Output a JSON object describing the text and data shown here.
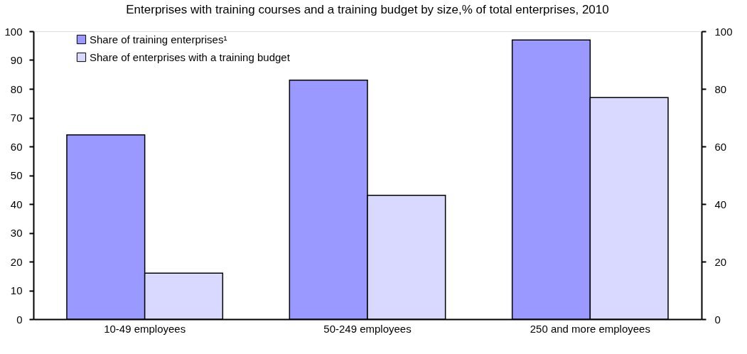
{
  "chart_data": {
    "type": "bar",
    "title": "Enterprises with training courses and a training budget by size,% of total enterprises, 2010",
    "categories": [
      "10-49 employees",
      "50-249 employees",
      "250 and more employees"
    ],
    "series": [
      {
        "name": "Share of training enterprises¹",
        "color": "#9999ff",
        "values": [
          64,
          83,
          97
        ]
      },
      {
        "name": "Share of enterprises with a training budget",
        "color": "#d9d9ff",
        "values": [
          16,
          43,
          77
        ]
      }
    ],
    "ylim": [
      0,
      100
    ],
    "yticks": [
      0,
      10,
      20,
      30,
      40,
      50,
      60,
      70,
      80,
      90,
      100
    ],
    "y2lim": [
      0,
      100
    ],
    "y2ticks": [
      0,
      20,
      40,
      60,
      80,
      100
    ],
    "grid": false,
    "legend": "top left"
  }
}
